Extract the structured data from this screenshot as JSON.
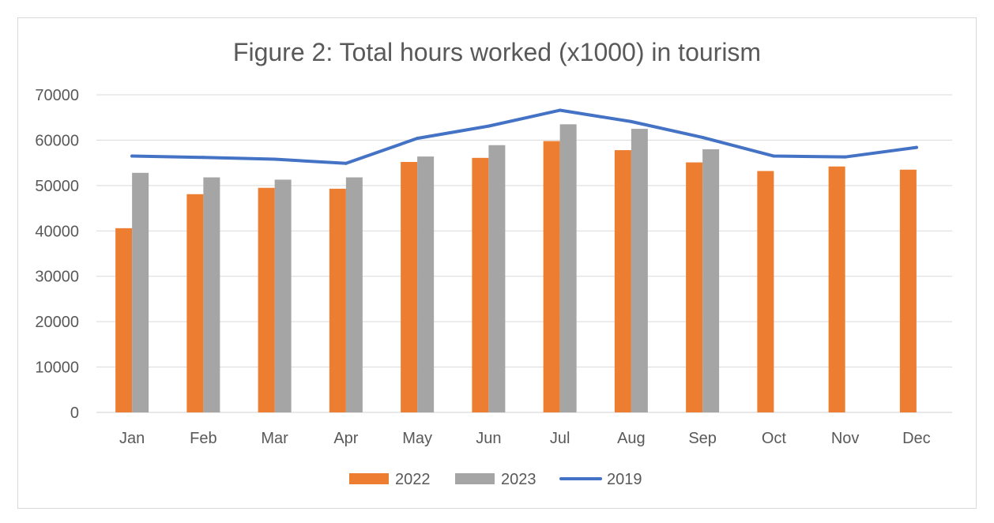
{
  "chart_data": {
    "type": "bar",
    "title": "Figure 2: Total hours worked (x1000) in tourism",
    "xlabel": "",
    "ylabel": "",
    "ylim": [
      0,
      70000
    ],
    "yticks": [
      0,
      10000,
      20000,
      30000,
      40000,
      50000,
      60000,
      70000
    ],
    "grid": true,
    "legend_position": "bottom",
    "categories": [
      "Jan",
      "Feb",
      "Mar",
      "Apr",
      "May",
      "Jun",
      "Jul",
      "Aug",
      "Sep",
      "Oct",
      "Nov",
      "Dec"
    ],
    "series": [
      {
        "name": "2022",
        "type": "bar",
        "color": "#ED7D31",
        "values": [
          40600,
          48100,
          49500,
          49300,
          55200,
          56100,
          59800,
          57800,
          55100,
          53200,
          54200,
          53500
        ]
      },
      {
        "name": "2023",
        "type": "bar",
        "color": "#A5A5A5",
        "values": [
          52800,
          51800,
          51300,
          51800,
          56400,
          58900,
          63500,
          62500,
          58000,
          null,
          null,
          null
        ]
      },
      {
        "name": "2019",
        "type": "line",
        "color": "#4472C4",
        "values": [
          56500,
          56200,
          55800,
          54900,
          60400,
          63100,
          66600,
          64100,
          60600,
          56500,
          56300,
          58400
        ]
      }
    ]
  }
}
